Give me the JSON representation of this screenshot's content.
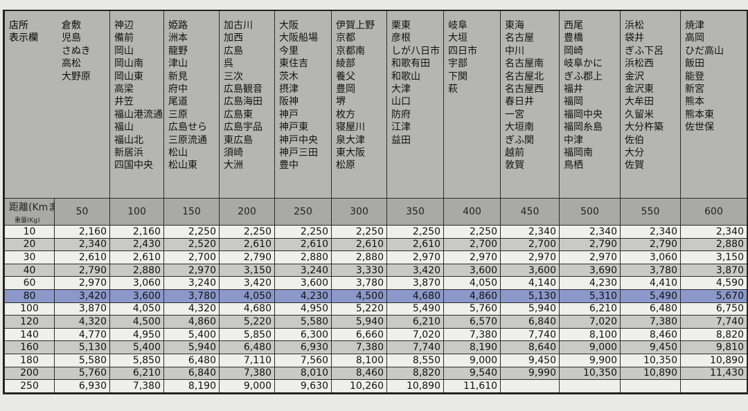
{
  "header": {
    "store_label": [
      "店所",
      "表示欄"
    ],
    "distance_label": "距離(Kmまで)",
    "weight_label": "重量(Kg)"
  },
  "distances": [
    "50",
    "100",
    "150",
    "200",
    "250",
    "300",
    "350",
    "400",
    "450",
    "500",
    "550",
    "600"
  ],
  "stores": [
    [
      "倉敷",
      "児島",
      "さぬき",
      "高松",
      "大野原"
    ],
    [
      "神辺",
      "備前",
      "岡山",
      "岡山南",
      "岡山東",
      "高梁",
      "井笠",
      "福山港流通",
      "福山",
      "福山北",
      "新居浜",
      "四国中央"
    ],
    [
      "姫路",
      "洲本",
      "龍野",
      "津山",
      "新見",
      "府中",
      "尾道",
      "三原",
      "広島せら",
      "三原流通",
      "松山",
      "松山東"
    ],
    [
      "加古川",
      "加西",
      "広島",
      "呉",
      "三次",
      "広島観音",
      "広島海田",
      "広島東",
      "広島宇品",
      "東広島",
      "須崎",
      "大洲"
    ],
    [
      "大阪",
      "大阪船場",
      "今里",
      "東住吉",
      "茨木",
      "摂津",
      "阪神",
      "神戸",
      "神戸東",
      "神戸中央",
      "神戸三田",
      "豊中"
    ],
    [
      "伊賀上野",
      "京都",
      "京都南",
      "綾部",
      "養父",
      "豊岡",
      "堺",
      "枚方",
      "寝屋川",
      "泉大津",
      "東大阪",
      "松原"
    ],
    [
      "栗東",
      "彦根",
      "しが八日市",
      "和歌有田",
      "和歌山",
      "大津",
      "山口",
      "防府",
      "江津",
      "益田"
    ],
    [
      "岐阜",
      "大垣",
      "四日市",
      "宇部",
      "下関",
      "萩"
    ],
    [
      "東海",
      "名古屋",
      "中川",
      "名古屋南",
      "名古屋北",
      "名古屋西",
      "春日井",
      "一宮",
      "大垣南",
      "ぎふ関",
      "越前",
      "敦賀"
    ],
    [
      "西尾",
      "豊橋",
      "岡崎",
      "岐阜かに",
      "ぎふ郡上",
      "福井",
      "福岡",
      "福岡中央",
      "福岡糸島",
      "中津",
      "福岡南",
      "鳥栖"
    ],
    [
      "浜松",
      "袋井",
      "ぎふ下呂",
      "浜松西",
      "金沢",
      "金沢東",
      "大牟田",
      "久留米",
      "大分杵築",
      "佐伯",
      "大分",
      "佐賀"
    ],
    [
      "焼津",
      "高岡",
      "ひだ高山",
      "飯田",
      "能登",
      "新宮",
      "熊本",
      "熊本東",
      "佐世保"
    ]
  ],
  "highlighted_weight": "80",
  "highlight_color": "#7f8fcf",
  "rows": [
    {
      "weight": "10",
      "prices": [
        "2,160",
        "2,160",
        "2,250",
        "2,250",
        "2,250",
        "2,250",
        "2,250",
        "2,250",
        "2,340",
        "2,340",
        "2,340",
        "2,340"
      ]
    },
    {
      "weight": "20",
      "prices": [
        "2,340",
        "2,430",
        "2,520",
        "2,610",
        "2,610",
        "2,610",
        "2,610",
        "2,700",
        "2,700",
        "2,790",
        "2,790",
        "2,880"
      ]
    },
    {
      "weight": "30",
      "prices": [
        "2,610",
        "2,610",
        "2,700",
        "2,790",
        "2,880",
        "2,880",
        "2,970",
        "2,970",
        "2,970",
        "2,970",
        "3,060",
        "3,150"
      ]
    },
    {
      "weight": "40",
      "prices": [
        "2,790",
        "2,880",
        "2,970",
        "3,150",
        "3,240",
        "3,330",
        "3,420",
        "3,600",
        "3,600",
        "3,690",
        "3,780",
        "3,870"
      ]
    },
    {
      "weight": "60",
      "prices": [
        "2,970",
        "3,060",
        "3,240",
        "3,420",
        "3,600",
        "3,780",
        "3,870",
        "4,050",
        "4,140",
        "4,230",
        "4,410",
        "4,590"
      ]
    },
    {
      "weight": "80",
      "prices": [
        "3,420",
        "3,600",
        "3,780",
        "4,050",
        "4,230",
        "4,500",
        "4,680",
        "4,860",
        "5,130",
        "5,310",
        "5,490",
        "5,670"
      ]
    },
    {
      "weight": "100",
      "prices": [
        "3,870",
        "4,050",
        "4,320",
        "4,680",
        "4,950",
        "5,220",
        "5,490",
        "5,760",
        "5,940",
        "6,210",
        "6,480",
        "6,750"
      ]
    },
    {
      "weight": "120",
      "prices": [
        "4,320",
        "4,500",
        "4,860",
        "5,220",
        "5,580",
        "5,940",
        "6,210",
        "6,570",
        "6,840",
        "7,020",
        "7,380",
        "7,740"
      ]
    },
    {
      "weight": "140",
      "prices": [
        "4,770",
        "4,950",
        "5,400",
        "5,850",
        "6,300",
        "6,660",
        "7,020",
        "7,380",
        "7,740",
        "8,100",
        "8,460",
        "8,820"
      ]
    },
    {
      "weight": "160",
      "prices": [
        "5,130",
        "5,400",
        "5,940",
        "6,480",
        "6,930",
        "7,380",
        "7,740",
        "8,190",
        "8,640",
        "9,000",
        "9,450",
        "9,810"
      ]
    },
    {
      "weight": "180",
      "prices": [
        "5,580",
        "5,850",
        "6,480",
        "7,110",
        "7,560",
        "8,100",
        "8,550",
        "9,000",
        "9,450",
        "9,900",
        "10,350",
        "10,890"
      ]
    },
    {
      "weight": "200",
      "prices": [
        "5,760",
        "6,210",
        "6,840",
        "7,380",
        "8,010",
        "8,460",
        "8,820",
        "9,540",
        "9,990",
        "10,350",
        "10,890",
        "11,430"
      ]
    },
    {
      "weight": "250",
      "prices": [
        "6,930",
        "7,380",
        "8,190",
        "9,000",
        "9,630",
        "10,260",
        "10,890",
        "11,610",
        "",
        "",
        "",
        ""
      ]
    }
  ]
}
